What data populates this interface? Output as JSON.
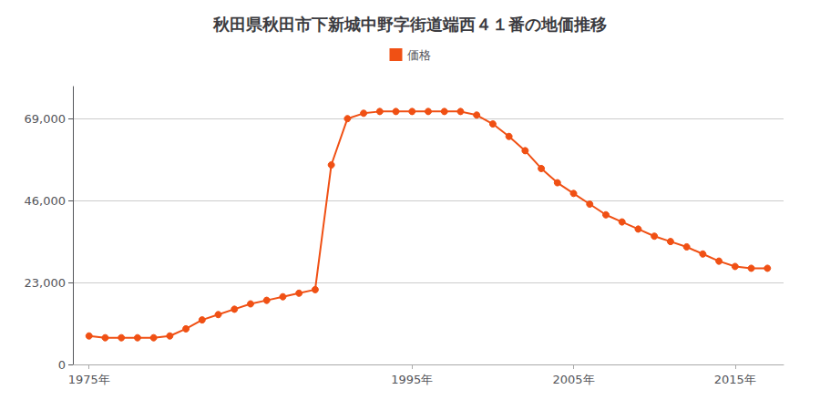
{
  "chart_data": {
    "type": "line",
    "title": "秋田県秋田市下新城中野字街道端西４１番の地価推移",
    "x": [
      1975,
      1976,
      1977,
      1978,
      1979,
      1980,
      1981,
      1982,
      1983,
      1984,
      1985,
      1986,
      1987,
      1988,
      1989,
      1990,
      1991,
      1992,
      1993,
      1994,
      1995,
      1996,
      1997,
      1998,
      1999,
      2000,
      2001,
      2002,
      2003,
      2004,
      2005,
      2006,
      2007,
      2008,
      2009,
      2010,
      2011,
      2012,
      2013,
      2014,
      2015,
      2016,
      2017
    ],
    "series": [
      {
        "name": "価格",
        "color": "#f05014",
        "marker": "circle",
        "values": [
          8000,
          7500,
          7500,
          7500,
          7500,
          8000,
          10000,
          12500,
          14000,
          15500,
          17000,
          18000,
          19000,
          20000,
          21000,
          56000,
          69000,
          70500,
          71000,
          71000,
          71000,
          71000,
          71000,
          71000,
          70000,
          67500,
          64000,
          60000,
          55000,
          51000,
          48000,
          45000,
          42000,
          40000,
          38000,
          36000,
          34500,
          33000,
          31000,
          29000,
          27500,
          27000,
          27000
        ]
      }
    ],
    "xlim": [
      1974,
      2018
    ],
    "xticks": [
      {
        "value": 1975,
        "label": "1975年"
      },
      {
        "value": 1995,
        "label": "1995年"
      },
      {
        "value": 2005,
        "label": "2005年"
      },
      {
        "value": 2015,
        "label": "2015年"
      }
    ],
    "ylim": [
      0,
      78000
    ],
    "yticks": [
      0,
      {
        "value": 23000,
        "label": "23,000"
      },
      {
        "value": 46000,
        "label": "46,000"
      },
      {
        "value": 69000,
        "label": "69,000"
      }
    ],
    "grid": true,
    "legend": "top"
  }
}
